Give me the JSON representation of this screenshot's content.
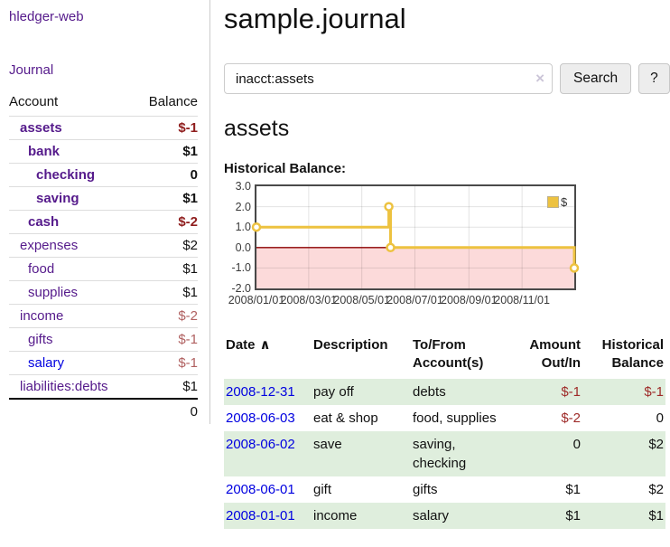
{
  "sidebar": {
    "brand": "hledger-web",
    "journal_link": "Journal",
    "accounts": {
      "headers": {
        "account": "Account",
        "balance": "Balance"
      },
      "rows": [
        {
          "name": "assets",
          "balance": "$-1",
          "depth": 1,
          "bold": true,
          "color": "purple",
          "balance_class": "neg-bold"
        },
        {
          "name": "bank",
          "balance": "$1",
          "depth": 2,
          "bold": true,
          "color": "purple",
          "balance_class": "bold"
        },
        {
          "name": "checking",
          "balance": "0",
          "depth": 3,
          "bold": true,
          "color": "purple",
          "balance_class": "bold"
        },
        {
          "name": "saving",
          "balance": "$1",
          "depth": 3,
          "bold": true,
          "color": "purple",
          "balance_class": "bold"
        },
        {
          "name": "cash",
          "balance": "$-2",
          "depth": 2,
          "bold": true,
          "color": "purple",
          "balance_class": "neg-bold"
        },
        {
          "name": "expenses",
          "balance": "$2",
          "depth": 1,
          "bold": false,
          "color": "purple",
          "balance_class": ""
        },
        {
          "name": "food",
          "balance": "$1",
          "depth": 2,
          "bold": false,
          "color": "purple",
          "balance_class": ""
        },
        {
          "name": "supplies",
          "balance": "$1",
          "depth": 2,
          "bold": false,
          "color": "purple",
          "balance_class": ""
        },
        {
          "name": "income",
          "balance": "$-2",
          "depth": 1,
          "bold": false,
          "color": "purple",
          "balance_class": "neg-soft"
        },
        {
          "name": "gifts",
          "balance": "$-1",
          "depth": 2,
          "bold": false,
          "color": "purple",
          "balance_class": "neg-soft"
        },
        {
          "name": "salary",
          "balance": "$-1",
          "depth": 2,
          "bold": false,
          "color": "blue",
          "balance_class": "neg-soft"
        },
        {
          "name": "liabilities:debts",
          "balance": "$1",
          "depth": 1,
          "bold": false,
          "color": "purple",
          "balance_class": ""
        }
      ],
      "total": "0"
    }
  },
  "header": {
    "title": "sample.journal"
  },
  "search": {
    "value": "inacct:assets",
    "clear_icon": "×",
    "search_button": "Search",
    "help_button": "?"
  },
  "account_view": {
    "title": "assets",
    "chart_heading": "Historical Balance:"
  },
  "chart_data": {
    "type": "line",
    "step": true,
    "title": "Historical Balance:",
    "legend": [
      {
        "label": "$",
        "color": "#edc240"
      }
    ],
    "x_start": "2008-01-01",
    "x_end": "2008-12-31",
    "points": [
      [
        "2008-01-01",
        1
      ],
      [
        "2008-06-01",
        2
      ],
      [
        "2008-06-03",
        0
      ],
      [
        "2008-12-31",
        -1
      ]
    ],
    "ylim": [
      -2,
      3
    ],
    "yticks": [
      "3.0",
      "2.0",
      "1.0",
      "0.0",
      "-1.0",
      "-2.0"
    ],
    "xticks": [
      "2008/01/01",
      "2008/03/01",
      "2008/05/01",
      "2008/07/01",
      "2008/09/01",
      "2008/11/01"
    ],
    "series_color": "#edc240",
    "zero_line_color": "#8b0000",
    "negative_region_color": "#fcdada",
    "grid": true,
    "legend_position": "top-right"
  },
  "register": {
    "headers": {
      "date": "Date",
      "sort_icon": "∧",
      "description": "Description",
      "accounts": "To/From Account(s)",
      "amount": "Amount Out/In",
      "balance": "Historical Balance"
    },
    "rows": [
      {
        "date": "2008-12-31",
        "description": "pay off",
        "accounts": "debts",
        "amount": "$-1",
        "balance": "$-1",
        "amount_negative": true,
        "balance_negative": true
      },
      {
        "date": "2008-06-03",
        "description": "eat & shop",
        "accounts": "food, supplies",
        "amount": "$-2",
        "balance": "0",
        "amount_negative": true,
        "balance_negative": false
      },
      {
        "date": "2008-06-02",
        "description": "save",
        "accounts": "saving, checking",
        "amount": "0",
        "balance": "$2",
        "amount_negative": false,
        "balance_negative": false
      },
      {
        "date": "2008-06-01",
        "description": "gift",
        "accounts": "gifts",
        "amount": "$1",
        "balance": "$2",
        "amount_negative": false,
        "balance_negative": false
      },
      {
        "date": "2008-01-01",
        "description": "income",
        "accounts": "salary",
        "amount": "$1",
        "balance": "$1",
        "amount_negative": false,
        "balance_negative": false
      }
    ]
  }
}
